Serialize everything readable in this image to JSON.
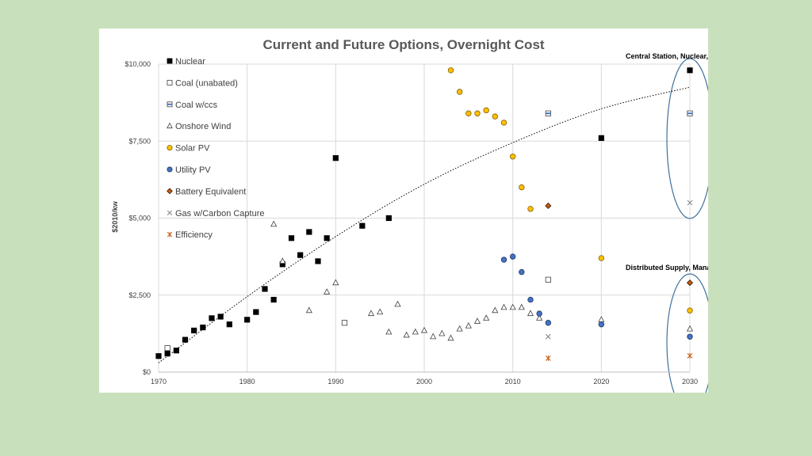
{
  "chart_data": {
    "type": "scatter",
    "title": "Current and Future Options, Overnight Cost",
    "ylabel": "$2010/kw",
    "xlabel": "",
    "xlim": [
      1970,
      2030
    ],
    "ylim": [
      0,
      10000
    ],
    "x_ticks": [
      1970,
      1980,
      1990,
      2000,
      2010,
      2020,
      2030
    ],
    "x_tick_labels": [
      "1970",
      "1980",
      "1990",
      "2000",
      "2010",
      "2020",
      "2030"
    ],
    "y_ticks": [
      0,
      2500,
      5000,
      7500,
      10000
    ],
    "y_tick_labels": [
      "$0",
      "$2,500",
      "$5,000",
      "$7,500",
      "$10,000"
    ],
    "grid": true,
    "legend_position": "top-left",
    "annotations": [
      {
        "text": "Central Station, Nuclear, Coal, Gas"
      },
      {
        "text": "Distributed Supply, Managed Demand"
      }
    ],
    "trendline": {
      "style": "dotted",
      "points": [
        [
          1970,
          300
        ],
        [
          1980,
          2450
        ],
        [
          1990,
          4400
        ],
        [
          2000,
          6100
        ],
        [
          2010,
          7450
        ],
        [
          2020,
          8550
        ],
        [
          2030,
          9250
        ]
      ]
    },
    "series": [
      {
        "name": "Nuclear",
        "marker": "square",
        "fill": "#000000",
        "stroke": "#000000",
        "points": [
          [
            1970,
            520
          ],
          [
            1971,
            600
          ],
          [
            1972,
            700
          ],
          [
            1973,
            1050
          ],
          [
            1974,
            1350
          ],
          [
            1975,
            1450
          ],
          [
            1976,
            1750
          ],
          [
            1977,
            1800
          ],
          [
            1978,
            1550
          ],
          [
            1980,
            1700
          ],
          [
            1981,
            1950
          ],
          [
            1982,
            2700
          ],
          [
            1983,
            2350
          ],
          [
            1984,
            3500
          ],
          [
            1985,
            4350
          ],
          [
            1986,
            3800
          ],
          [
            1987,
            4550
          ],
          [
            1988,
            3600
          ],
          [
            1989,
            4350
          ],
          [
            1990,
            6950
          ],
          [
            1993,
            4750
          ],
          [
            1996,
            5000
          ],
          [
            2020,
            7600
          ],
          [
            2030,
            9800
          ]
        ]
      },
      {
        "name": "Coal (unabated)",
        "marker": "square",
        "fill": "#ffffff",
        "stroke": "#404040",
        "points": [
          [
            1971,
            780
          ],
          [
            1991,
            1600
          ],
          [
            2014,
            3000
          ]
        ]
      },
      {
        "name": "Coal w/ccs",
        "marker": "square-bar",
        "fill": "#ffffff",
        "stroke": "#404040",
        "bar": "#4472c4",
        "points": [
          [
            2014,
            8400
          ],
          [
            2030,
            8400
          ]
        ]
      },
      {
        "name": "Onshore Wind",
        "marker": "triangle",
        "fill": "#ffffff",
        "stroke": "#404040",
        "points": [
          [
            1983,
            4800
          ],
          [
            1984,
            3600
          ],
          [
            1987,
            2000
          ],
          [
            1989,
            2600
          ],
          [
            1990,
            2900
          ],
          [
            1994,
            1900
          ],
          [
            1995,
            1950
          ],
          [
            1996,
            1300
          ],
          [
            1997,
            2200
          ],
          [
            1998,
            1200
          ],
          [
            1999,
            1300
          ],
          [
            2000,
            1350
          ],
          [
            2001,
            1150
          ],
          [
            2002,
            1250
          ],
          [
            2003,
            1100
          ],
          [
            2004,
            1400
          ],
          [
            2005,
            1500
          ],
          [
            2006,
            1650
          ],
          [
            2007,
            1750
          ],
          [
            2008,
            2000
          ],
          [
            2009,
            2100
          ],
          [
            2010,
            2100
          ],
          [
            2011,
            2100
          ],
          [
            2012,
            1900
          ],
          [
            2013,
            1750
          ],
          [
            2020,
            1700
          ],
          [
            2030,
            1400
          ]
        ]
      },
      {
        "name": "Solar PV",
        "marker": "circle",
        "fill": "#ffc000",
        "stroke": "#7f6000",
        "points": [
          [
            2003,
            9800
          ],
          [
            2004,
            9100
          ],
          [
            2005,
            8400
          ],
          [
            2006,
            8400
          ],
          [
            2007,
            8500
          ],
          [
            2008,
            8300
          ],
          [
            2009,
            8100
          ],
          [
            2010,
            7000
          ],
          [
            2011,
            6000
          ],
          [
            2012,
            5300
          ],
          [
            2020,
            3700
          ],
          [
            2030,
            2000
          ]
        ]
      },
      {
        "name": "Utility PV",
        "marker": "circle",
        "fill": "#4472c4",
        "stroke": "#1f3864",
        "points": [
          [
            2009,
            3650
          ],
          [
            2010,
            3750
          ],
          [
            2011,
            3250
          ],
          [
            2012,
            2350
          ],
          [
            2013,
            1900
          ],
          [
            2014,
            1600
          ],
          [
            2020,
            1550
          ],
          [
            2030,
            1150
          ]
        ]
      },
      {
        "name": "Battery Equivalent",
        "marker": "diamond",
        "fill": "#c55a11",
        "stroke": "#3a1a00",
        "points": [
          [
            2014,
            5400
          ],
          [
            2030,
            2900
          ]
        ]
      },
      {
        "name": "Gas w/Carbon Capture",
        "marker": "x",
        "fill": "none",
        "stroke": "#7f7f7f",
        "points": [
          [
            2014,
            1150
          ],
          [
            2030,
            5500
          ]
        ]
      },
      {
        "name": "Efficiency",
        "marker": "star",
        "fill": "none",
        "stroke": "#c55a11",
        "points": [
          [
            2014,
            450
          ],
          [
            2030,
            530
          ]
        ]
      }
    ]
  }
}
